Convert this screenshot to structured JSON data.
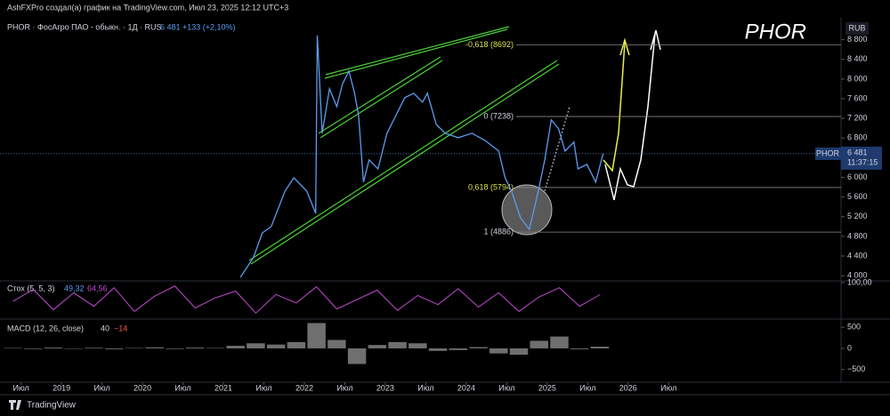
{
  "header": {
    "caption": "AshFXPro создал(а) график на TradingView.com, Июл 23, 2025 12:12 UTC+3",
    "brand": "TradingView"
  },
  "chart_data": [
    {
      "type": "line",
      "title": "PHOR · ФосАгро ПАО - обыкн. · 1Д · RUS",
      "quote": "6 481",
      "change": "+133 (+2,10%)",
      "watermark": "PHOR",
      "currency": "RUB",
      "countdown": "11:37:15",
      "x": [
        2021.21,
        2021.37,
        2021.48,
        2021.59,
        2021.76,
        2021.87,
        2022.03,
        2022.14,
        2022.16,
        2022.22,
        2022.31,
        2022.4,
        2022.47,
        2022.55,
        2022.62,
        2022.67,
        2022.73,
        2022.8,
        2022.91,
        2023.02,
        2023.13,
        2023.24,
        2023.35,
        2023.46,
        2023.52,
        2023.63,
        2023.74,
        2023.9,
        2024.07,
        2024.23,
        2024.4,
        2024.48,
        2024.56,
        2024.67,
        2024.78,
        2024.89,
        2024.97,
        2025.05,
        2025.14,
        2025.22,
        2025.33,
        2025.38,
        2025.49,
        2025.6,
        2025.69
      ],
      "series": [
        {
          "name": "PHOR",
          "color": "#5b9cf0",
          "values": [
            3966,
            4364,
            4870,
            4997,
            5721,
            5992,
            5721,
            5268,
            8886,
            6897,
            7801,
            7439,
            7891,
            8163,
            7711,
            7258,
            5902,
            6354,
            6173,
            6897,
            7258,
            7620,
            7711,
            7530,
            7711,
            7077,
            6897,
            6806,
            6897,
            6752,
            6535,
            5992,
            5721,
            5178,
            4943,
            5721,
            6354,
            7168,
            6987,
            6535,
            6716,
            6173,
            6264,
            5902,
            6481
          ]
        }
      ],
      "last_price": {
        "value": 6481,
        "label": "6 481"
      },
      "levels": [
        {
          "value": 8692,
          "label": "-0,618 (8692)",
          "color": "#d7e44a"
        },
        {
          "value": 7238,
          "label": "0 (7238)",
          "color": "#d1d4dc"
        },
        {
          "value": 5794,
          "label": "0,618 (5794)",
          "color": "#d7e44a"
        },
        {
          "value": 4886,
          "label": "1 (4886)",
          "color": "#d1d4dc"
        }
      ],
      "xlim": [
        2018.24,
        2028.63
      ],
      "ylim": [
        3930,
        9210
      ],
      "xticks": [
        {
          "value": 2018.5,
          "label": "Июл"
        },
        2019,
        {
          "value": 2019.5,
          "label": "Июл"
        },
        2020,
        {
          "value": 2020.5,
          "label": "Июл"
        },
        2021,
        {
          "value": 2021.5,
          "label": "Июл"
        },
        2022,
        {
          "value": 2022.5,
          "label": "Июл"
        },
        2023,
        {
          "value": 2023.5,
          "label": "Июл"
        },
        2024,
        {
          "value": 2024.5,
          "label": "Июл"
        },
        2025,
        {
          "value": 2025.5,
          "label": "Июл"
        },
        2026,
        {
          "value": 2026.5,
          "label": "Июл"
        }
      ],
      "yticks": [
        {
          "value": 8800,
          "label": "8 800"
        },
        {
          "value": 8400,
          "label": "8 400"
        },
        {
          "value": 8000,
          "label": "8 000"
        },
        {
          "value": 7600,
          "label": "7 600"
        },
        {
          "value": 7200,
          "label": "7 200"
        },
        {
          "value": 6800,
          "label": "6 800"
        },
        {
          "value": 6400,
          "label": "6 400"
        },
        {
          "value": 6000,
          "label": "6 000"
        },
        {
          "value": 5600,
          "label": "5 600"
        },
        {
          "value": 5200,
          "label": "5 200"
        },
        {
          "value": 4800,
          "label": "4 800"
        },
        {
          "value": 4400,
          "label": "4 400"
        },
        {
          "value": 4000,
          "label": "4 000"
        }
      ]
    },
    {
      "type": "line",
      "title": "Стох (5, 5, 3)",
      "readings": [
        "49,32",
        "64,56"
      ],
      "color": "#c04ad0",
      "x": [
        2018.4,
        2018.65,
        2018.9,
        2019.15,
        2019.4,
        2019.65,
        2019.9,
        2020.15,
        2020.4,
        2020.65,
        2020.9,
        2021.15,
        2021.4,
        2021.65,
        2021.9,
        2022.15,
        2022.4,
        2022.65,
        2022.9,
        2023.15,
        2023.4,
        2023.65,
        2023.9,
        2024.15,
        2024.4,
        2024.65,
        2024.9,
        2025.15,
        2025.4,
        2025.65
      ],
      "values": [
        45,
        80,
        20,
        70,
        30,
        85,
        15,
        60,
        90,
        25,
        55,
        75,
        10,
        65,
        40,
        88,
        22,
        50,
        78,
        18,
        62,
        35,
        82,
        28,
        70,
        15,
        58,
        85,
        30,
        64.56
      ],
      "xlim": [
        2018.24,
        2028.63
      ],
      "ylim": [
        0,
        100
      ],
      "yticks": [
        {
          "value": 100,
          "label": "100,00"
        }
      ]
    },
    {
      "type": "bar",
      "title": "MACD (12, 26, close)",
      "readings": [
        "40",
        "−14"
      ],
      "color": "#9e9e9e",
      "x": [
        2018.4,
        2018.65,
        2018.9,
        2019.15,
        2019.4,
        2019.65,
        2019.9,
        2020.15,
        2020.4,
        2020.65,
        2020.9,
        2021.15,
        2021.4,
        2021.65,
        2021.9,
        2022.15,
        2022.4,
        2022.65,
        2022.9,
        2023.15,
        2023.4,
        2023.65,
        2023.9,
        2024.15,
        2024.4,
        2024.65,
        2024.9,
        2025.15,
        2025.4,
        2025.65
      ],
      "values": [
        10,
        -15,
        20,
        -10,
        15,
        -20,
        10,
        25,
        -15,
        20,
        10,
        60,
        120,
        90,
        150,
        600,
        200,
        -370,
        80,
        150,
        120,
        -60,
        -40,
        30,
        -120,
        -150,
        180,
        280,
        -20,
        40
      ],
      "xlim": [
        2018.24,
        2028.63
      ],
      "ylim": [
        -760,
        630
      ],
      "yticks": [
        500,
        0,
        {
          "value": -500,
          "label": "−500"
        }
      ]
    }
  ]
}
